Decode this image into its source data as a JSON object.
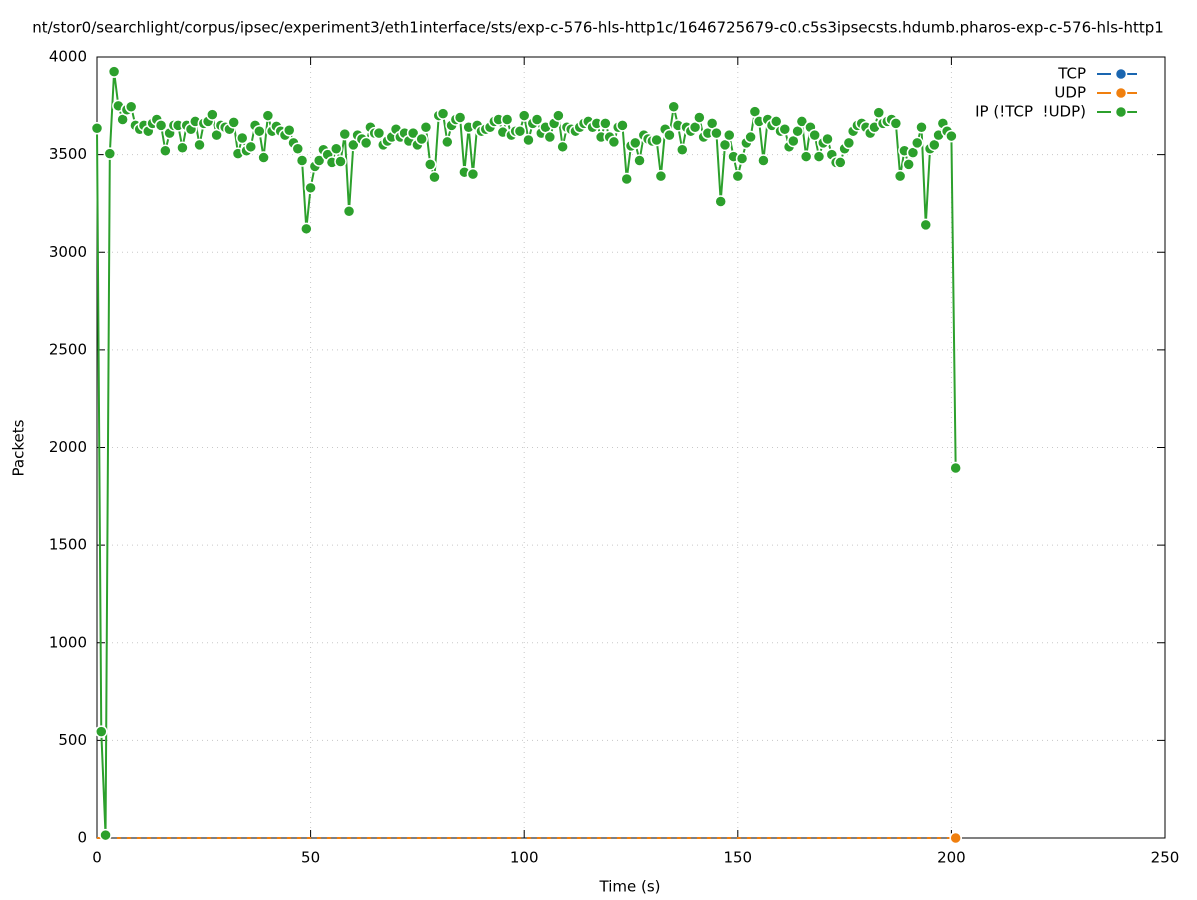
{
  "chart_data": {
    "type": "line",
    "title": "nt/stor0/searchlight/corpus/ipsec/experiment3/eth1interface/sts/exp-c-576-hls-http1c/1646725679-c0.c5s3ipsecsts.hdumb.pharos-exp-c-576-hls-http1",
    "x_label": "Time (s)",
    "y_label": "Packets",
    "xlim": [
      0,
      250
    ],
    "xticks": [
      0,
      50,
      100,
      150,
      200,
      250
    ],
    "ylim": [
      0,
      4000
    ],
    "yticks": [
      0,
      500,
      1000,
      1500,
      2000,
      2500,
      3000,
      3500,
      4000
    ],
    "grid": true,
    "legend": "top-right",
    "x": [
      0,
      1,
      2,
      3,
      4,
      5,
      6,
      7,
      8,
      9,
      10,
      11,
      12,
      13,
      14,
      15,
      16,
      17,
      18,
      19,
      20,
      21,
      22,
      23,
      24,
      25,
      26,
      27,
      28,
      29,
      30,
      31,
      32,
      33,
      34,
      35,
      36,
      37,
      38,
      39,
      40,
      41,
      42,
      43,
      44,
      45,
      46,
      47,
      48,
      49,
      50,
      51,
      52,
      53,
      54,
      55,
      56,
      57,
      58,
      59,
      60,
      61,
      62,
      63,
      64,
      65,
      66,
      67,
      68,
      69,
      70,
      71,
      72,
      73,
      74,
      75,
      76,
      77,
      78,
      79,
      80,
      81,
      82,
      83,
      84,
      85,
      86,
      87,
      88,
      89,
      90,
      91,
      92,
      93,
      94,
      95,
      96,
      97,
      98,
      99,
      100,
      101,
      102,
      103,
      104,
      105,
      106,
      107,
      108,
      109,
      110,
      111,
      112,
      113,
      114,
      115,
      116,
      117,
      118,
      119,
      120,
      121,
      122,
      123,
      124,
      125,
      126,
      127,
      128,
      129,
      130,
      131,
      132,
      133,
      134,
      135,
      136,
      137,
      138,
      139,
      140,
      141,
      142,
      143,
      144,
      145,
      146,
      147,
      148,
      149,
      150,
      151,
      152,
      153,
      154,
      155,
      156,
      157,
      158,
      159,
      160,
      161,
      162,
      163,
      164,
      165,
      166,
      167,
      168,
      169,
      170,
      171,
      172,
      173,
      174,
      175,
      176,
      177,
      178,
      179,
      180,
      181,
      182,
      183,
      184,
      185,
      186,
      187,
      188,
      189,
      190,
      191,
      192,
      193,
      194,
      195,
      196,
      197,
      198,
      199,
      200,
      201
    ],
    "series": [
      {
        "name": "TCP",
        "color": "#1a66b0",
        "values": [
          0,
          0,
          0,
          0,
          0,
          0,
          0,
          0,
          0,
          0,
          0,
          0,
          0,
          0,
          0,
          0,
          0,
          0,
          0,
          0,
          0,
          0,
          0,
          0,
          0,
          0,
          0,
          0,
          0,
          0,
          0,
          0,
          0,
          0,
          0,
          0,
          0,
          0,
          0,
          0,
          0,
          0,
          0,
          0,
          0,
          0,
          0,
          0,
          0,
          0,
          0,
          0,
          0,
          0,
          0,
          0,
          0,
          0,
          0,
          0,
          0,
          0,
          0,
          0,
          0,
          0,
          0,
          0,
          0,
          0,
          0,
          0,
          0,
          0,
          0,
          0,
          0,
          0,
          0,
          0,
          0,
          0,
          0,
          0,
          0,
          0,
          0,
          0,
          0,
          0,
          0,
          0,
          0,
          0,
          0,
          0,
          0,
          0,
          0,
          0,
          0,
          0,
          0,
          0,
          0,
          0,
          0,
          0,
          0,
          0,
          0,
          0,
          0,
          0,
          0,
          0,
          0,
          0,
          0,
          0,
          0,
          0,
          0,
          0,
          0,
          0,
          0,
          0,
          0,
          0,
          0,
          0,
          0,
          0,
          0,
          0,
          0,
          0,
          0,
          0,
          0,
          0,
          0,
          0,
          0,
          0,
          0,
          0,
          0,
          0,
          0,
          0,
          0,
          0,
          0,
          0,
          0,
          0,
          0,
          0,
          0,
          0,
          0,
          0,
          0,
          0,
          0,
          0,
          0,
          0,
          0,
          0,
          0,
          0,
          0,
          0,
          0,
          0,
          0,
          0,
          0,
          0,
          0,
          0,
          0,
          0,
          0,
          0,
          0,
          0,
          0,
          0,
          0,
          0,
          0,
          0,
          0,
          0,
          0,
          0,
          0,
          0
        ]
      },
      {
        "name": "UDP",
        "color": "#f07f0e",
        "values": [
          0,
          0,
          0,
          0,
          0,
          0,
          0,
          0,
          0,
          0,
          0,
          0,
          0,
          0,
          0,
          0,
          0,
          0,
          0,
          0,
          0,
          0,
          0,
          0,
          0,
          0,
          0,
          0,
          0,
          0,
          0,
          0,
          0,
          0,
          0,
          0,
          0,
          0,
          0,
          0,
          0,
          0,
          0,
          0,
          0,
          0,
          0,
          0,
          0,
          0,
          0,
          0,
          0,
          0,
          0,
          0,
          0,
          0,
          0,
          0,
          0,
          0,
          0,
          0,
          0,
          0,
          0,
          0,
          0,
          0,
          0,
          0,
          0,
          0,
          0,
          0,
          0,
          0,
          0,
          0,
          0,
          0,
          0,
          0,
          0,
          0,
          0,
          0,
          0,
          0,
          0,
          0,
          0,
          0,
          0,
          0,
          0,
          0,
          0,
          0,
          0,
          0,
          0,
          0,
          0,
          0,
          0,
          0,
          0,
          0,
          0,
          0,
          0,
          0,
          0,
          0,
          0,
          0,
          0,
          0,
          0,
          0,
          0,
          0,
          0,
          0,
          0,
          0,
          0,
          0,
          0,
          0,
          0,
          0,
          0,
          0,
          0,
          0,
          0,
          0,
          0,
          0,
          0,
          0,
          0,
          0,
          0,
          0,
          0,
          0,
          0,
          0,
          0,
          0,
          0,
          0,
          0,
          0,
          0,
          0,
          0,
          0,
          0,
          0,
          0,
          0,
          0,
          0,
          0,
          0,
          0,
          0,
          0,
          0,
          0,
          0,
          0,
          0,
          0,
          0,
          0,
          0,
          0,
          0,
          0,
          0,
          0,
          0,
          0,
          0,
          0,
          0,
          0,
          0,
          0,
          0,
          0,
          0,
          0,
          0,
          0,
          0
        ]
      },
      {
        "name": "IP (!TCP  !UDP)",
        "color": "#2ca02c",
        "values": [
          3635,
          545,
          15,
          3505,
          3925,
          3750,
          3680,
          3730,
          3745,
          3650,
          3630,
          3650,
          3620,
          3660,
          3680,
          3650,
          3520,
          3610,
          3650,
          3650,
          3535,
          3650,
          3630,
          3670,
          3550,
          3660,
          3670,
          3705,
          3600,
          3650,
          3640,
          3630,
          3665,
          3505,
          3585,
          3520,
          3540,
          3650,
          3620,
          3485,
          3700,
          3620,
          3645,
          3620,
          3600,
          3625,
          3560,
          3530,
          3470,
          3120,
          3330,
          3440,
          3470,
          3525,
          3500,
          3460,
          3530,
          3465,
          3605,
          3210,
          3550,
          3600,
          3580,
          3560,
          3640,
          3610,
          3610,
          3550,
          3570,
          3590,
          3630,
          3590,
          3610,
          3570,
          3610,
          3550,
          3580,
          3640,
          3450,
          3385,
          3700,
          3710,
          3565,
          3650,
          3680,
          3690,
          3410,
          3640,
          3400,
          3650,
          3620,
          3630,
          3640,
          3670,
          3680,
          3615,
          3680,
          3600,
          3620,
          3620,
          3700,
          3575,
          3660,
          3680,
          3610,
          3640,
          3590,
          3660,
          3700,
          3540,
          3640,
          3630,
          3620,
          3640,
          3660,
          3670,
          3640,
          3660,
          3590,
          3660,
          3590,
          3565,
          3640,
          3650,
          3375,
          3545,
          3560,
          3470,
          3600,
          3580,
          3570,
          3575,
          3390,
          3630,
          3600,
          3745,
          3650,
          3525,
          3640,
          3620,
          3640,
          3690,
          3590,
          3610,
          3660,
          3610,
          3260,
          3550,
          3600,
          3490,
          3390,
          3480,
          3560,
          3590,
          3720,
          3670,
          3470,
          3680,
          3650,
          3670,
          3620,
          3630,
          3540,
          3570,
          3620,
          3670,
          3490,
          3640,
          3600,
          3490,
          3560,
          3580,
          3500,
          3460,
          3460,
          3530,
          3560,
          3620,
          3650,
          3660,
          3640,
          3610,
          3640,
          3715,
          3660,
          3670,
          3680,
          3660,
          3390,
          3520,
          3450,
          3510,
          3560,
          3640,
          3140,
          3530,
          3550,
          3600,
          3660,
          3620,
          3595,
          1895
        ]
      }
    ]
  }
}
